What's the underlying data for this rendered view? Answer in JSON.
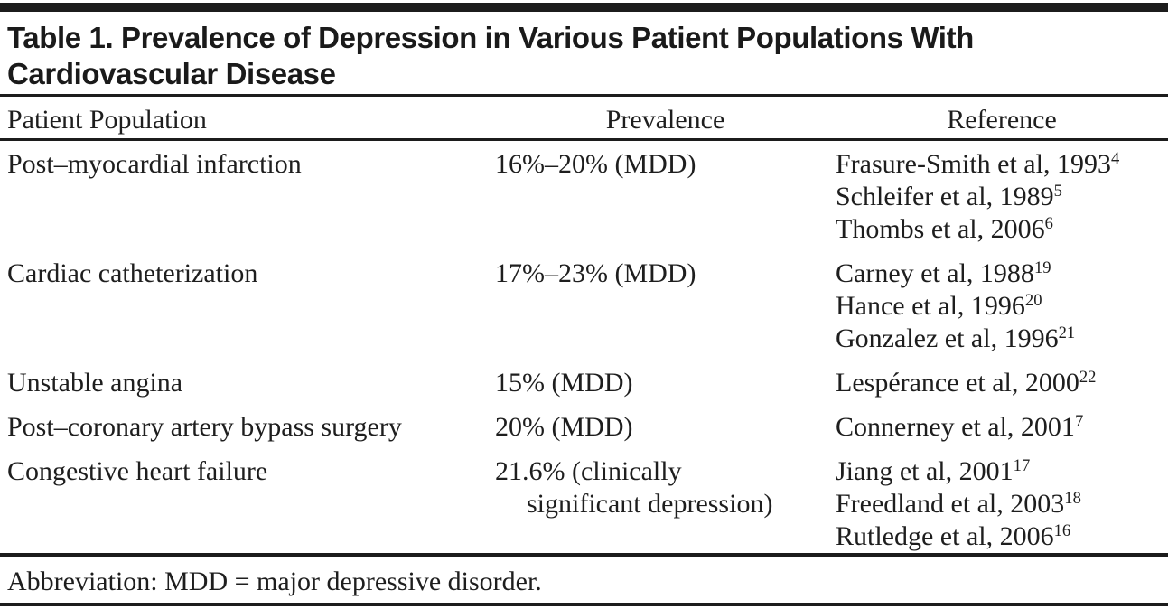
{
  "table": {
    "title_lines": [
      "Table 1. Prevalence of Depression in Various Patient Populations With",
      "Cardiovascular Disease"
    ],
    "columns": [
      {
        "label": "Patient Population"
      },
      {
        "label": "Prevalence"
      },
      {
        "label": "Reference"
      }
    ],
    "rows": [
      {
        "population": "Post–myocardial infarction",
        "prevalence_lines": [
          "16%–20% (MDD)"
        ],
        "references": [
          {
            "text": "Frasure-Smith et al, 1993",
            "superscript": "4"
          },
          {
            "text": "Schleifer et al, 1989",
            "superscript": "5"
          },
          {
            "text": "Thombs et al, 2006",
            "superscript": "6"
          }
        ]
      },
      {
        "population": "Cardiac catheterization",
        "prevalence_lines": [
          "17%–23% (MDD)"
        ],
        "references": [
          {
            "text": "Carney et al, 1988",
            "superscript": "19"
          },
          {
            "text": "Hance et al, 1996",
            "superscript": "20"
          },
          {
            "text": "Gonzalez et al, 1996",
            "superscript": "21"
          }
        ]
      },
      {
        "population": "Unstable angina",
        "prevalence_lines": [
          "15% (MDD)"
        ],
        "references": [
          {
            "text": "Lespérance et al, 2000",
            "superscript": "22"
          }
        ]
      },
      {
        "population": "Post–coronary artery bypass surgery",
        "prevalence_lines": [
          "20% (MDD)"
        ],
        "references": [
          {
            "text": "Connerney et al, 2001",
            "superscript": "7"
          }
        ]
      },
      {
        "population": "Congestive heart failure",
        "prevalence_lines": [
          "21.6% (clinically",
          "significant depression)"
        ],
        "references": [
          {
            "text": "Jiang et al, 2001",
            "superscript": "17"
          },
          {
            "text": "Freedland et al, 2003",
            "superscript": "18"
          },
          {
            "text": "Rutledge et al, 2006",
            "superscript": "16"
          }
        ]
      }
    ],
    "footnote": "Abbreviation: MDD = major depressive disorder.",
    "colors": {
      "text": "#1e1e1e",
      "rule": "#1c1c1c",
      "background": "#ffffff"
    }
  }
}
